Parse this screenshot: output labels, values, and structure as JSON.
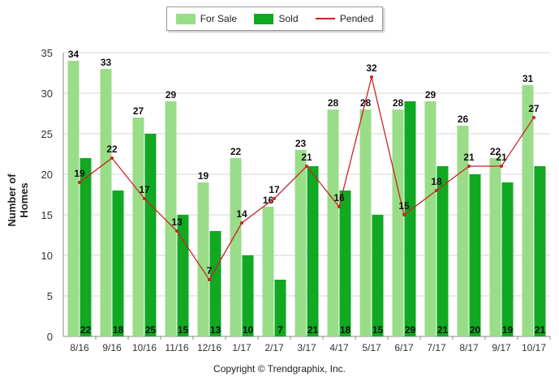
{
  "chart_data": {
    "type": "bar",
    "categories": [
      "8/16",
      "9/16",
      "10/16",
      "11/16",
      "12/16",
      "1/17",
      "2/17",
      "3/17",
      "4/17",
      "5/17",
      "6/17",
      "7/17",
      "8/17",
      "9/17",
      "10/17"
    ],
    "series": [
      {
        "name": "For Sale",
        "type": "bar",
        "color": "#99dd88",
        "values": [
          34,
          33,
          27,
          29,
          19,
          22,
          16,
          23,
          28,
          28,
          28,
          29,
          26,
          22,
          31
        ]
      },
      {
        "name": "Sold",
        "type": "bar",
        "color": "#11a822",
        "values": [
          22,
          18,
          25,
          15,
          13,
          10,
          7,
          21,
          18,
          15,
          29,
          21,
          20,
          19,
          21
        ]
      },
      {
        "name": "Pended",
        "type": "line",
        "color": "#cc2222",
        "values": [
          19,
          22,
          17,
          13,
          7,
          14,
          17,
          21,
          16,
          32,
          15,
          18,
          21,
          21,
          27
        ]
      }
    ],
    "ylabel": "Number of Homes",
    "xlabel": "",
    "ylim": [
      0,
      35
    ],
    "yticks": [
      0,
      5,
      10,
      15,
      20,
      25,
      30,
      35
    ],
    "grid": true,
    "legend_position": "top-center"
  },
  "legend": {
    "for_sale": "For Sale",
    "sold": "Sold",
    "pended": "Pended"
  },
  "copyright": "Copyright © Trendgraphix, Inc."
}
